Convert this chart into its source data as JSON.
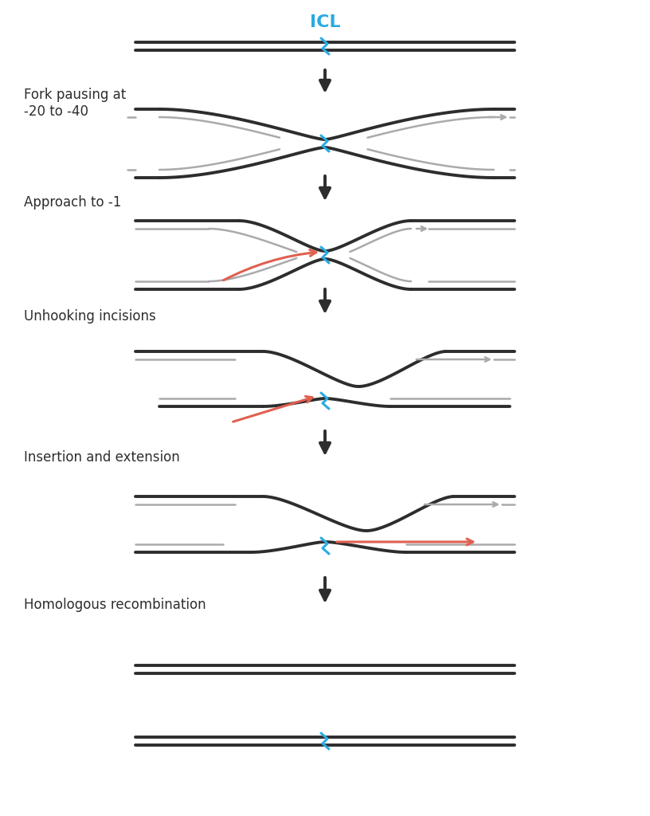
{
  "bg_color": "#ffffff",
  "dark_color": "#2d2d2d",
  "gray_color": "#aaaaaa",
  "red_color": "#e06050",
  "blue_color": "#29abe2",
  "icl_label": "ICL",
  "labels": [
    "Fork pausing at\n-20 to -40",
    "Approach to -1",
    "Unhooking incisions",
    "Insertion and extension",
    "Homologous recombination"
  ],
  "label_fontsize": 12,
  "title_fontsize": 16
}
